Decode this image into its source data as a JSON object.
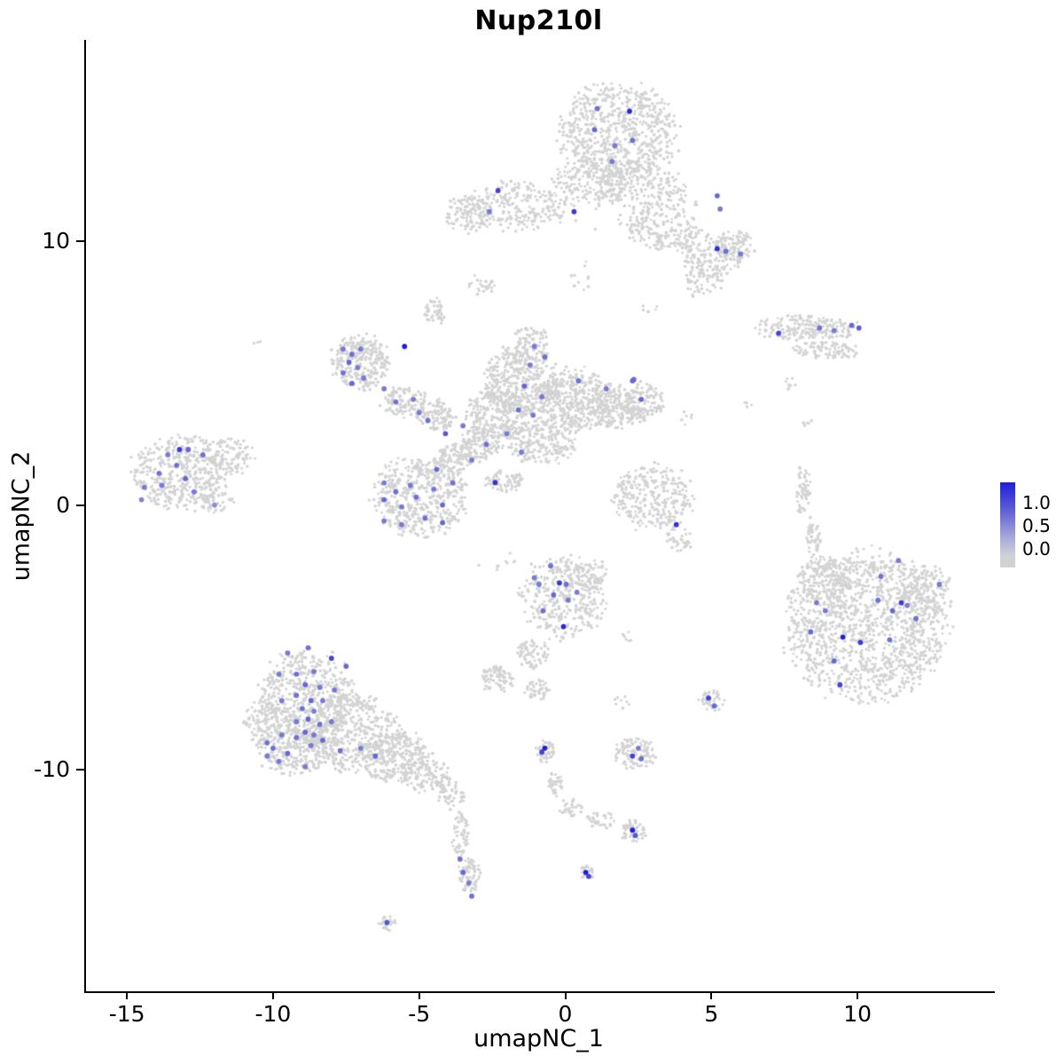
{
  "chart_data": {
    "type": "scatter",
    "title": "Nup210l",
    "xlabel": "umapNC_1",
    "ylabel": "umapNC_2",
    "xlim": [
      -16.4,
      14.7
    ],
    "ylim": [
      -18.4,
      17.6
    ],
    "x_ticks": [
      -15,
      -10,
      -5,
      0,
      5,
      10
    ],
    "y_ticks": [
      -10,
      0,
      10
    ],
    "grid": false,
    "legend_position": "right",
    "point_color_low": "#d3d3d3",
    "point_color_high": "#1e1ed8",
    "legend": {
      "labels": [
        "1.0",
        "0.5",
        "0.0"
      ]
    },
    "clusters": [
      [
        1.8,
        14.1,
        2.1,
        1.9,
        700
      ],
      [
        0.9,
        12.3,
        1.3,
        0.9,
        170
      ],
      [
        2.6,
        12.1,
        1.5,
        1.0,
        150
      ],
      [
        4.0,
        11.5,
        0.7,
        0.6,
        25
      ],
      [
        -1.8,
        11.3,
        1.9,
        0.95,
        260
      ],
      [
        -3.4,
        11.0,
        0.8,
        0.7,
        80
      ],
      [
        3.3,
        10.5,
        1.3,
        0.9,
        160
      ],
      [
        5.0,
        9.5,
        1.2,
        0.9,
        160
      ],
      [
        5.8,
        9.8,
        0.7,
        0.6,
        90
      ],
      [
        4.6,
        8.4,
        0.8,
        0.5,
        45
      ],
      [
        1.5,
        11.6,
        2.3,
        1.3,
        60
      ],
      [
        -2.8,
        8.3,
        0.5,
        0.45,
        28
      ],
      [
        0.6,
        8.6,
        0.4,
        0.6,
        10
      ],
      [
        8.2,
        6.7,
        1.9,
        0.5,
        200
      ],
      [
        8.9,
        5.85,
        1.2,
        0.35,
        90
      ],
      [
        7.7,
        4.6,
        0.25,
        0.3,
        8
      ],
      [
        8.3,
        3.1,
        0.2,
        0.25,
        6
      ],
      [
        -7.0,
        5.4,
        1.05,
        1.05,
        280
      ],
      [
        -4.45,
        7.3,
        0.4,
        0.55,
        45
      ],
      [
        -5.5,
        3.9,
        0.8,
        0.6,
        110
      ],
      [
        -4.4,
        3.4,
        0.75,
        0.6,
        110
      ],
      [
        -1.5,
        4.7,
        1.4,
        1.35,
        420
      ],
      [
        0.2,
        4.0,
        1.4,
        1.2,
        380
      ],
      [
        -2.3,
        3.4,
        1.1,
        1.0,
        260
      ],
      [
        1.7,
        3.7,
        0.95,
        0.95,
        220
      ],
      [
        2.7,
        3.9,
        0.7,
        0.75,
        120
      ],
      [
        -0.8,
        2.4,
        1.3,
        0.85,
        220
      ],
      [
        -1.2,
        6.2,
        0.7,
        0.6,
        70
      ],
      [
        -2.9,
        2.3,
        0.8,
        0.65,
        130
      ],
      [
        -3.8,
        1.7,
        0.7,
        0.6,
        110
      ],
      [
        -5.0,
        0.3,
        1.7,
        1.5,
        500
      ],
      [
        -2.1,
        0.9,
        0.7,
        0.4,
        70
      ],
      [
        -13.2,
        1.2,
        1.7,
        1.45,
        450
      ],
      [
        -11.5,
        1.8,
        0.9,
        0.7,
        120
      ],
      [
        -11.9,
        0.1,
        0.6,
        0.4,
        40
      ],
      [
        3.0,
        0.3,
        1.4,
        1.3,
        300
      ],
      [
        3.9,
        -1.3,
        0.5,
        0.5,
        35
      ],
      [
        8.15,
        0.6,
        0.3,
        1.0,
        55
      ],
      [
        8.5,
        -1.2,
        0.25,
        0.8,
        45
      ],
      [
        10.3,
        -4.6,
        2.8,
        2.9,
        1300
      ],
      [
        8.9,
        -2.8,
        1.0,
        0.9,
        160
      ],
      [
        12.3,
        -3.3,
        1.0,
        1.0,
        150
      ],
      [
        -0.1,
        -3.5,
        1.5,
        1.6,
        380
      ],
      [
        0.9,
        -2.6,
        0.6,
        0.6,
        60
      ],
      [
        -1.1,
        -5.6,
        0.55,
        0.6,
        70
      ],
      [
        -2.4,
        -6.6,
        0.65,
        0.5,
        80
      ],
      [
        -1.0,
        -7.0,
        0.45,
        0.4,
        45
      ],
      [
        -8.8,
        -7.3,
        1.7,
        1.9,
        550
      ],
      [
        -7.3,
        -8.6,
        1.7,
        1.5,
        450
      ],
      [
        -9.3,
        -9.2,
        1.3,
        1.1,
        300
      ],
      [
        -5.9,
        -9.5,
        1.3,
        1.0,
        260
      ],
      [
        -10.3,
        -8.2,
        0.7,
        0.9,
        100
      ],
      [
        -4.8,
        -10.2,
        0.9,
        0.7,
        130
      ],
      [
        -3.9,
        -11.0,
        0.45,
        0.55,
        50
      ],
      [
        -3.6,
        -12.5,
        0.3,
        0.9,
        60
      ],
      [
        -3.3,
        -14.0,
        0.4,
        0.7,
        70
      ],
      [
        -6.1,
        -15.8,
        0.35,
        0.3,
        25
      ],
      [
        2.4,
        -9.4,
        0.75,
        0.65,
        110
      ],
      [
        5.0,
        -7.4,
        0.45,
        0.45,
        45
      ],
      [
        -0.7,
        -9.3,
        0.4,
        0.4,
        45
      ],
      [
        -0.35,
        -10.5,
        0.25,
        0.55,
        35
      ],
      [
        0.2,
        -11.5,
        0.4,
        0.4,
        30
      ],
      [
        1.2,
        -11.9,
        0.5,
        0.35,
        30
      ],
      [
        2.3,
        -12.4,
        0.5,
        0.45,
        60
      ],
      [
        0.75,
        -13.9,
        0.3,
        0.25,
        25
      ],
      [
        -10.5,
        6.1,
        0.15,
        0.15,
        3
      ],
      [
        1.9,
        -7.5,
        0.3,
        0.3,
        8
      ],
      [
        2.1,
        -5.0,
        0.3,
        0.2,
        6
      ],
      [
        6.2,
        3.7,
        0.25,
        0.25,
        4
      ],
      [
        4.1,
        3.3,
        0.3,
        0.3,
        6
      ],
      [
        2.9,
        7.4,
        0.3,
        0.3,
        5
      ],
      [
        -2.6,
        -2.3,
        0.4,
        0.3,
        5
      ],
      [
        -1.8,
        -2.0,
        0.5,
        0.3,
        5
      ]
    ],
    "expressing_cells": [
      [
        1.1,
        15.0,
        0.55
      ],
      [
        2.2,
        14.9,
        0.95
      ],
      [
        1.0,
        14.2,
        0.6
      ],
      [
        1.7,
        13.6,
        0.5
      ],
      [
        2.3,
        13.8,
        0.55
      ],
      [
        1.6,
        13.0,
        0.5
      ],
      [
        5.2,
        11.7,
        0.6
      ],
      [
        5.3,
        11.2,
        0.5
      ],
      [
        5.2,
        9.7,
        0.9
      ],
      [
        5.5,
        9.6,
        0.55
      ],
      [
        6.0,
        9.5,
        0.5
      ],
      [
        -2.3,
        11.9,
        0.8
      ],
      [
        -2.6,
        11.1,
        0.5
      ],
      [
        0.3,
        11.1,
        0.85
      ],
      [
        7.3,
        6.5,
        0.8
      ],
      [
        8.7,
        6.7,
        0.55
      ],
      [
        9.2,
        6.6,
        0.5
      ],
      [
        9.8,
        6.8,
        0.6
      ],
      [
        10.05,
        6.7,
        0.65
      ],
      [
        -7.6,
        5.9,
        0.5
      ],
      [
        -7.3,
        5.7,
        0.55
      ],
      [
        -7.0,
        5.9,
        0.5
      ],
      [
        -7.4,
        5.4,
        0.6
      ],
      [
        -7.1,
        5.2,
        0.5
      ],
      [
        -7.6,
        5.0,
        0.55
      ],
      [
        -6.9,
        4.8,
        0.5
      ],
      [
        -7.3,
        4.6,
        0.6
      ],
      [
        -5.5,
        6.0,
        1.0
      ],
      [
        -6.2,
        4.4,
        0.5
      ],
      [
        -5.8,
        3.9,
        0.55
      ],
      [
        -5.2,
        4.0,
        0.5
      ],
      [
        -5.0,
        3.5,
        0.5
      ],
      [
        -4.7,
        3.2,
        0.55
      ],
      [
        -1.06,
        6.0,
        0.5
      ],
      [
        -0.7,
        5.6,
        0.55
      ],
      [
        -1.2,
        5.3,
        0.5
      ],
      [
        -1.4,
        4.5,
        0.6
      ],
      [
        -0.8,
        4.1,
        0.5
      ],
      [
        -1.6,
        3.6,
        0.55
      ],
      [
        -1.1,
        3.4,
        0.5
      ],
      [
        0.45,
        4.7,
        0.55
      ],
      [
        1.4,
        4.4,
        0.5
      ],
      [
        2.6,
        4.0,
        0.6
      ],
      [
        2.35,
        4.75,
        0.55
      ],
      [
        -2.0,
        2.7,
        0.5
      ],
      [
        -2.7,
        2.3,
        0.55
      ],
      [
        -3.5,
        3.0,
        0.5
      ],
      [
        -4.1,
        2.7,
        0.7
      ],
      [
        -2.4,
        0.85,
        0.9
      ],
      [
        -3.2,
        1.7,
        0.5
      ],
      [
        -1.5,
        2.0,
        0.5
      ],
      [
        -6.2,
        0.84,
        0.5
      ],
      [
        -5.8,
        0.5,
        0.55
      ],
      [
        -5.3,
        0.74,
        0.5
      ],
      [
        -6.2,
        0.2,
        0.6
      ],
      [
        -5.6,
        -0.07,
        0.5
      ],
      [
        -5.1,
        0.3,
        0.55
      ],
      [
        -4.5,
        0.6,
        0.5
      ],
      [
        -4.2,
        0.0,
        0.6
      ],
      [
        -4.8,
        -0.5,
        0.55
      ],
      [
        -5.6,
        -0.74,
        0.5
      ],
      [
        -6.2,
        -0.6,
        0.5
      ],
      [
        -4.2,
        -0.67,
        0.6
      ],
      [
        -3.85,
        0.84,
        0.55
      ],
      [
        -4.4,
        1.35,
        0.6
      ],
      [
        -14.4,
        0.67,
        0.5
      ],
      [
        -13.9,
        1.2,
        0.55
      ],
      [
        -13.6,
        1.9,
        0.5
      ],
      [
        -13.2,
        2.1,
        0.85
      ],
      [
        -12.9,
        2.1,
        0.6
      ],
      [
        -13.3,
        1.5,
        0.55
      ],
      [
        -13.8,
        0.74,
        0.5
      ],
      [
        -13.0,
        1.0,
        0.6
      ],
      [
        -12.4,
        1.9,
        0.55
      ],
      [
        -12.0,
        0.0,
        0.4
      ],
      [
        -12.7,
        0.5,
        0.5
      ],
      [
        -14.5,
        0.2,
        0.45
      ],
      [
        3.8,
        -0.74,
        0.9
      ],
      [
        2.3,
        4.7,
        0.6
      ],
      [
        11.4,
        -2.1,
        0.5
      ],
      [
        10.8,
        -2.7,
        0.55
      ],
      [
        11.5,
        -3.7,
        0.85
      ],
      [
        11.2,
        -4.0,
        0.6
      ],
      [
        11.7,
        -3.8,
        0.5
      ],
      [
        10.7,
        -3.6,
        0.55
      ],
      [
        8.9,
        -4.0,
        0.5
      ],
      [
        8.4,
        -4.8,
        0.6
      ],
      [
        9.5,
        -5.0,
        1.0
      ],
      [
        10.1,
        -5.2,
        0.85
      ],
      [
        11.1,
        -5.1,
        0.55
      ],
      [
        9.2,
        -5.9,
        0.6
      ],
      [
        9.4,
        -6.8,
        0.8
      ],
      [
        12.8,
        -3.0,
        0.5
      ],
      [
        8.6,
        -3.7,
        0.5
      ],
      [
        12.0,
        -4.3,
        0.55
      ],
      [
        -0.9,
        -3.0,
        0.5
      ],
      [
        -0.2,
        -2.95,
        0.85
      ],
      [
        0.03,
        -3.0,
        0.55
      ],
      [
        -0.4,
        -3.4,
        0.6
      ],
      [
        0.1,
        -3.6,
        0.5
      ],
      [
        -0.76,
        -4.0,
        0.55
      ],
      [
        -0.06,
        -4.6,
        0.95
      ],
      [
        0.4,
        -3.3,
        0.5
      ],
      [
        -1.06,
        -2.75,
        0.5
      ],
      [
        -0.5,
        -2.3,
        0.55
      ],
      [
        -9.5,
        -5.6,
        0.5
      ],
      [
        -8.8,
        -5.4,
        0.55
      ],
      [
        -8.0,
        -5.8,
        0.8
      ],
      [
        -9.8,
        -6.4,
        0.5
      ],
      [
        -9.2,
        -6.4,
        0.55
      ],
      [
        -8.6,
        -6.3,
        0.5
      ],
      [
        -8.9,
        -6.8,
        0.6
      ],
      [
        -8.4,
        -6.9,
        0.5
      ],
      [
        -9.2,
        -7.2,
        0.55
      ],
      [
        -9.7,
        -7.4,
        0.5
      ],
      [
        -8.7,
        -7.4,
        0.6
      ],
      [
        -8.3,
        -7.4,
        0.5
      ],
      [
        -9.0,
        -7.7,
        0.55
      ],
      [
        -8.6,
        -7.8,
        0.5
      ],
      [
        -8.8,
        -8.1,
        0.6
      ],
      [
        -9.2,
        -8.2,
        0.5
      ],
      [
        -8.4,
        -8.3,
        0.55
      ],
      [
        -8.0,
        -8.2,
        0.5
      ],
      [
        -8.9,
        -8.6,
        0.6
      ],
      [
        -8.6,
        -8.7,
        0.5
      ],
      [
        -9.2,
        -8.8,
        0.55
      ],
      [
        -9.7,
        -8.7,
        0.5
      ],
      [
        -8.3,
        -8.9,
        0.6
      ],
      [
        -8.7,
        -9.1,
        0.5
      ],
      [
        -10.0,
        -9.2,
        0.55
      ],
      [
        -10.2,
        -9.5,
        0.5
      ],
      [
        -9.5,
        -9.4,
        0.6
      ],
      [
        -9.8,
        -9.7,
        0.5
      ],
      [
        -7.7,
        -9.3,
        0.55
      ],
      [
        -7.0,
        -9.2,
        0.5
      ],
      [
        -6.5,
        -9.5,
        0.6
      ],
      [
        -8.9,
        -9.9,
        0.5
      ],
      [
        -10.2,
        -9.0,
        0.55
      ],
      [
        -7.5,
        -6.1,
        0.6
      ],
      [
        -7.9,
        -7.0,
        0.5
      ],
      [
        -3.6,
        -13.4,
        0.55
      ],
      [
        -3.5,
        -13.9,
        0.6
      ],
      [
        -3.3,
        -14.3,
        0.5
      ],
      [
        -3.2,
        -14.8,
        0.55
      ],
      [
        -6.1,
        -15.8,
        0.7
      ],
      [
        0.7,
        -13.9,
        1.0
      ],
      [
        0.8,
        -14.05,
        0.8
      ],
      [
        -0.7,
        -9.2,
        1.0
      ],
      [
        -0.8,
        -9.35,
        0.8
      ],
      [
        2.3,
        -12.3,
        1.0
      ],
      [
        2.4,
        -12.5,
        0.7
      ],
      [
        2.3,
        -9.5,
        0.8
      ],
      [
        2.5,
        -9.2,
        0.5
      ],
      [
        2.6,
        -9.6,
        0.55
      ],
      [
        4.9,
        -7.3,
        0.8
      ],
      [
        5.1,
        -7.6,
        0.6
      ]
    ]
  }
}
